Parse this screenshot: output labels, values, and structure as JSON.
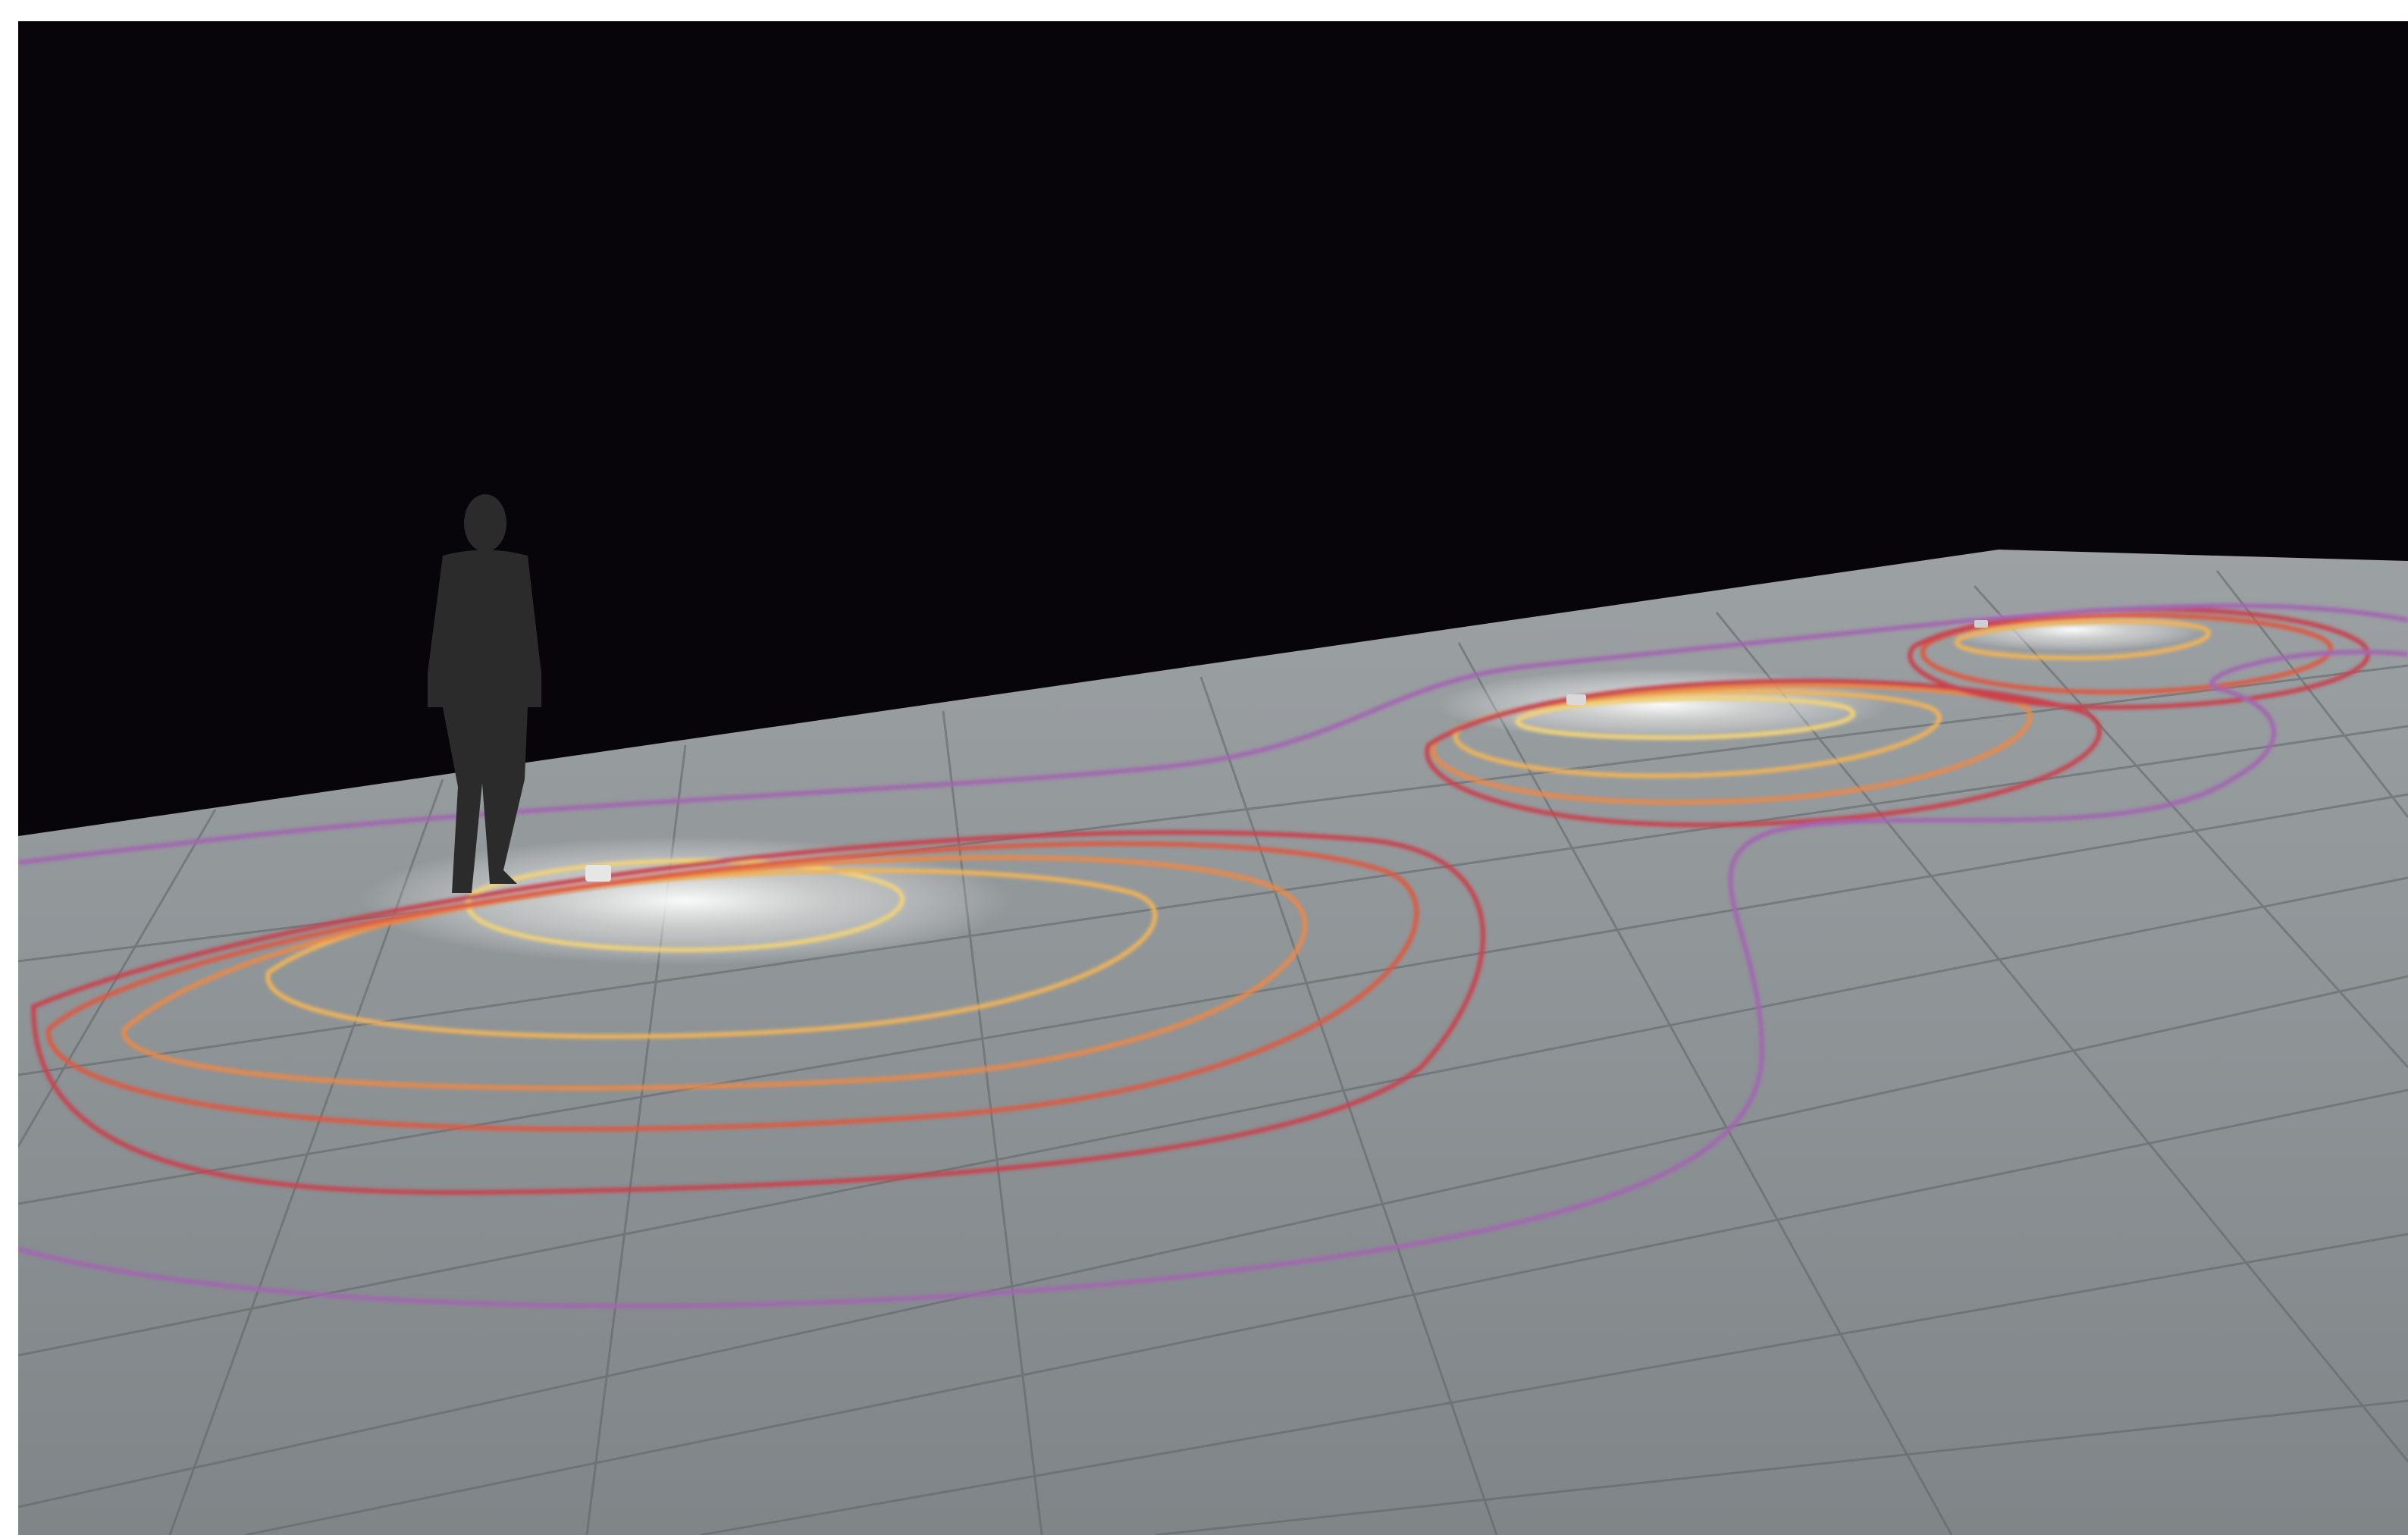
{
  "scene": {
    "background_color": "#07050a",
    "floor_color": "#8e9396",
    "grid_color": "#5d6366",
    "figure_color": "#2b2b2b",
    "fixture_color": "#e6e6e6",
    "luminaires": 3
  },
  "isolux_contours": {
    "colors": [
      "#ffffff",
      "#f0d27a",
      "#eeb35a",
      "#e8894c",
      "#dc5a42",
      "#c8434e",
      "#a266b0"
    ],
    "levels": 7
  }
}
